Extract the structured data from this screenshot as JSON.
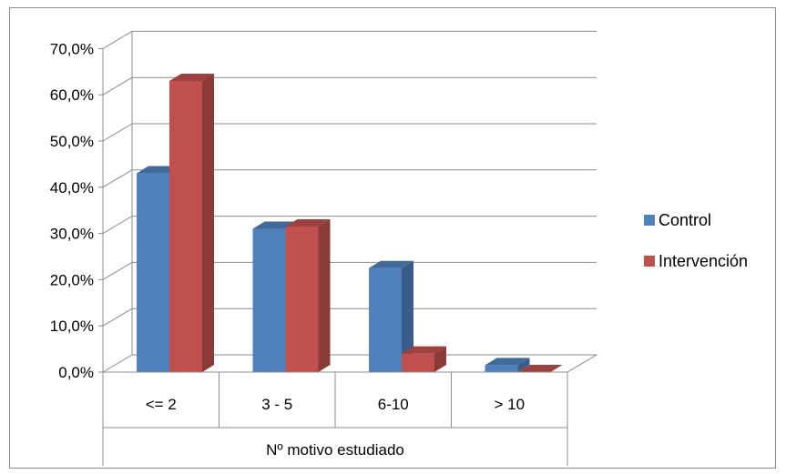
{
  "chart_data": {
    "type": "bar",
    "categories": [
      "<= 2",
      "3 - 5",
      "6-10",
      "> 10"
    ],
    "series": [
      {
        "name": "Control",
        "values": [
          43.0,
          31.0,
          22.5,
          1.5
        ],
        "color": "#4f81bd"
      },
      {
        "name": "Intervención",
        "values": [
          63.0,
          31.5,
          4.0,
          0.0
        ],
        "color": "#c0504d"
      }
    ],
    "y_ticks": [
      "0,0%",
      "10,0%",
      "20,0%",
      "30,0%",
      "40,0%",
      "50,0%",
      "60,0%",
      "70,0%"
    ],
    "ylim": [
      0,
      70
    ],
    "xlabel": "Nº motivo estudiado",
    "ylabel": "",
    "title": "",
    "grid": true,
    "legend_position": "right"
  }
}
